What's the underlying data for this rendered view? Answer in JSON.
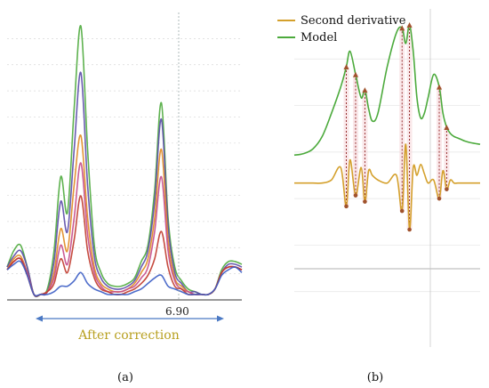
{
  "panels": {
    "a": {
      "label": "(a)",
      "tick_annotation": "6.90",
      "range_label": "After correction",
      "colors": {
        "axis": "#333333",
        "grid": "#d8d8d8",
        "arrow": "#4b79c4",
        "range_text": "#b8a020"
      }
    },
    "b": {
      "label": "(b)",
      "legend": [
        {
          "name": "Second derivative",
          "color": "#d4a02c"
        },
        {
          "name": "Model",
          "color": "#4caa3c"
        }
      ],
      "colors": {
        "grid": "#e4e4e4",
        "marker": "#a0522d",
        "connector": "#8b1a1a",
        "connector_fill": "#f6d9dc"
      }
    }
  },
  "chart_data": [
    {
      "panel": "a",
      "type": "line",
      "title": "",
      "xlabel": "",
      "ylabel": "",
      "xlim": [
        5.6,
        7.35
      ],
      "ylim": [
        0,
        1.05
      ],
      "x": [
        5.6,
        5.65,
        5.7,
        5.75,
        5.8,
        5.85,
        5.9,
        5.95,
        6.0,
        6.05,
        6.1,
        6.15,
        6.2,
        6.25,
        6.3,
        6.35,
        6.4,
        6.45,
        6.5,
        6.55,
        6.6,
        6.65,
        6.7,
        6.75,
        6.8,
        6.85,
        6.9,
        6.95,
        7.0,
        7.05,
        7.1,
        7.15,
        7.2,
        7.25,
        7.3,
        7.35
      ],
      "series": [
        {
          "color": "#4caa3c",
          "values": [
            0.12,
            0.18,
            0.2,
            0.12,
            0.02,
            0.02,
            0.04,
            0.18,
            0.45,
            0.32,
            0.7,
            1.0,
            0.55,
            0.2,
            0.1,
            0.06,
            0.05,
            0.05,
            0.06,
            0.08,
            0.14,
            0.2,
            0.4,
            0.72,
            0.3,
            0.12,
            0.07,
            0.04,
            0.03,
            0.02,
            0.02,
            0.04,
            0.11,
            0.14,
            0.14,
            0.13
          ]
        },
        {
          "color": "#5a4aa8",
          "values": [
            0.12,
            0.16,
            0.18,
            0.12,
            0.02,
            0.02,
            0.03,
            0.14,
            0.36,
            0.25,
            0.55,
            0.83,
            0.42,
            0.16,
            0.08,
            0.05,
            0.04,
            0.04,
            0.05,
            0.07,
            0.12,
            0.18,
            0.36,
            0.66,
            0.27,
            0.1,
            0.06,
            0.03,
            0.03,
            0.02,
            0.02,
            0.04,
            0.1,
            0.13,
            0.13,
            0.12
          ]
        },
        {
          "color": "#e08a20",
          "values": [
            0.11,
            0.15,
            0.16,
            0.1,
            0.02,
            0.02,
            0.03,
            0.1,
            0.26,
            0.18,
            0.42,
            0.6,
            0.3,
            0.12,
            0.06,
            0.04,
            0.03,
            0.03,
            0.04,
            0.06,
            0.1,
            0.15,
            0.3,
            0.55,
            0.22,
            0.08,
            0.05,
            0.03,
            0.02,
            0.02,
            0.02,
            0.04,
            0.1,
            0.12,
            0.12,
            0.11
          ]
        },
        {
          "color": "#c44a8a",
          "values": [
            0.11,
            0.14,
            0.15,
            0.1,
            0.02,
            0.02,
            0.03,
            0.08,
            0.2,
            0.13,
            0.3,
            0.5,
            0.24,
            0.1,
            0.05,
            0.03,
            0.03,
            0.03,
            0.04,
            0.05,
            0.08,
            0.12,
            0.25,
            0.45,
            0.18,
            0.07,
            0.04,
            0.03,
            0.02,
            0.02,
            0.02,
            0.04,
            0.1,
            0.12,
            0.12,
            0.11
          ]
        },
        {
          "color": "#c0392b",
          "values": [
            0.11,
            0.14,
            0.15,
            0.09,
            0.02,
            0.02,
            0.03,
            0.06,
            0.15,
            0.1,
            0.22,
            0.38,
            0.18,
            0.08,
            0.04,
            0.03,
            0.02,
            0.02,
            0.03,
            0.04,
            0.06,
            0.09,
            0.15,
            0.25,
            0.12,
            0.05,
            0.04,
            0.02,
            0.02,
            0.02,
            0.02,
            0.04,
            0.1,
            0.12,
            0.12,
            0.11
          ]
        },
        {
          "color": "#3a5cc4",
          "values": [
            0.11,
            0.13,
            0.14,
            0.09,
            0.02,
            0.02,
            0.02,
            0.03,
            0.05,
            0.05,
            0.07,
            0.1,
            0.06,
            0.04,
            0.03,
            0.02,
            0.02,
            0.02,
            0.02,
            0.03,
            0.04,
            0.06,
            0.08,
            0.09,
            0.05,
            0.04,
            0.03,
            0.02,
            0.02,
            0.02,
            0.02,
            0.04,
            0.09,
            0.11,
            0.12,
            0.1
          ]
        }
      ]
    },
    {
      "panel": "b",
      "type": "line",
      "title": "",
      "xlabel": "",
      "ylabel": "",
      "xlim": [
        0,
        1
      ],
      "ylim": [
        -1.0,
        1.1
      ],
      "x": [
        0.0,
        0.05,
        0.1,
        0.15,
        0.2,
        0.25,
        0.28,
        0.3,
        0.33,
        0.36,
        0.38,
        0.4,
        0.42,
        0.45,
        0.5,
        0.55,
        0.58,
        0.6,
        0.62,
        0.64,
        0.66,
        0.68,
        0.7,
        0.72,
        0.75,
        0.78,
        0.8,
        0.82,
        0.84,
        0.86,
        0.88,
        0.9,
        0.92,
        0.95,
        1.0
      ],
      "series": [
        {
          "name": "Model",
          "color": "#4caa3c",
          "values": [
            0.18,
            0.19,
            0.22,
            0.3,
            0.45,
            0.62,
            0.75,
            0.85,
            0.7,
            0.55,
            0.6,
            0.48,
            0.4,
            0.45,
            0.75,
            0.97,
            1.0,
            0.9,
            1.02,
            0.85,
            0.55,
            0.42,
            0.45,
            0.55,
            0.7,
            0.62,
            0.45,
            0.36,
            0.32,
            0.3,
            0.29,
            0.28,
            0.27,
            0.26,
            0.25
          ]
        },
        {
          "name": "Second derivative",
          "color": "#d4a02c",
          "values": [
            0.0,
            0.0,
            0.0,
            0.0,
            0.02,
            0.1,
            -0.15,
            0.15,
            -0.08,
            0.1,
            -0.12,
            0.08,
            0.05,
            0.02,
            0.0,
            0.05,
            -0.18,
            0.25,
            -0.3,
            0.1,
            0.05,
            0.12,
            0.06,
            0.0,
            0.02,
            -0.1,
            0.08,
            -0.04,
            0.02,
            0.0,
            0.0,
            0.0,
            0.0,
            0.0,
            0.0
          ]
        }
      ]
    }
  ]
}
